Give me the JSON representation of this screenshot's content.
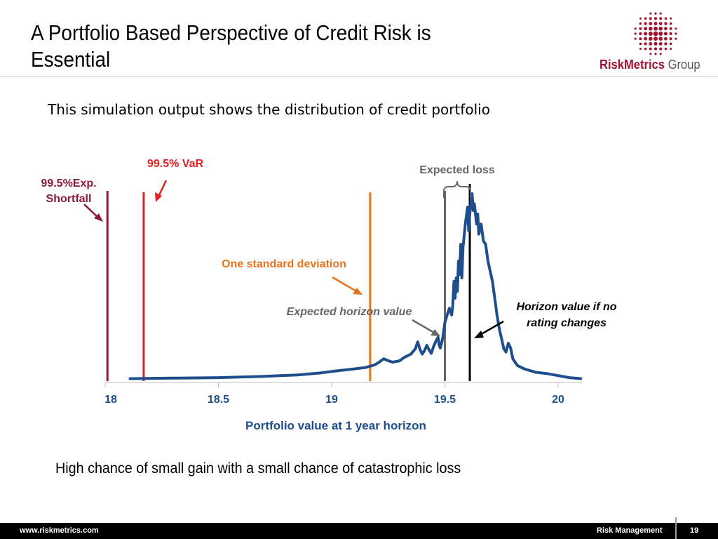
{
  "slide": {
    "title": "A Portfolio Based Perspective of Credit Risk is Essential",
    "subtitle": "This simulation output shows the distribution of credit portfolio",
    "conclusion": "High chance of small gain with a small chance of catastrophic loss"
  },
  "logo": {
    "brand": "RiskMetrics",
    "suffix": "Group",
    "mark_color": "#a0112d"
  },
  "footer": {
    "url": "www.riskmetrics.com",
    "section": "Risk Management",
    "page": "19"
  },
  "chart_data": {
    "type": "line",
    "xlabel": "Portfolio value at 1 year horizon",
    "xlim": [
      18,
      20.1
    ],
    "xticks": [
      "18",
      "18.5",
      "19",
      "19.5",
      "20"
    ],
    "grid": false,
    "series": [
      {
        "color": "#1f4e8c",
        "points": [
          [
            18.11,
            0.005
          ],
          [
            18.3,
            0.012
          ],
          [
            18.5,
            0.02
          ],
          [
            18.7,
            0.04
          ],
          [
            18.85,
            0.06
          ],
          [
            18.95,
            0.09
          ],
          [
            19.02,
            0.12
          ],
          [
            19.1,
            0.15
          ],
          [
            19.15,
            0.17
          ],
          [
            19.19,
            0.21
          ],
          [
            19.21,
            0.25
          ],
          [
            19.23,
            0.3
          ],
          [
            19.25,
            0.27
          ],
          [
            19.27,
            0.25
          ],
          [
            19.3,
            0.27
          ],
          [
            19.32,
            0.32
          ],
          [
            19.35,
            0.37
          ],
          [
            19.37,
            0.45
          ],
          [
            19.38,
            0.55
          ],
          [
            19.39,
            0.44
          ],
          [
            19.4,
            0.37
          ],
          [
            19.41,
            0.42
          ],
          [
            19.42,
            0.5
          ],
          [
            19.43,
            0.43
          ],
          [
            19.44,
            0.38
          ],
          [
            19.45,
            0.48
          ],
          [
            19.46,
            0.56
          ],
          [
            19.47,
            0.62
          ],
          [
            19.475,
            0.5
          ],
          [
            19.48,
            0.46
          ],
          [
            19.49,
            0.6
          ],
          [
            19.5,
            0.84
          ],
          [
            19.51,
            0.95
          ],
          [
            19.52,
            1.05
          ],
          [
            19.53,
            0.95
          ],
          [
            19.535,
            1.1
          ],
          [
            19.54,
            1.45
          ],
          [
            19.545,
            1.2
          ],
          [
            19.55,
            1.5
          ],
          [
            19.555,
            1.3
          ],
          [
            19.56,
            1.75
          ],
          [
            19.565,
            1.55
          ],
          [
            19.57,
            2.0
          ],
          [
            19.575,
            1.5
          ],
          [
            19.58,
            1.95
          ],
          [
            19.59,
            2.3
          ],
          [
            19.6,
            2.55
          ],
          [
            19.605,
            2.2
          ],
          [
            19.61,
            2.45
          ],
          [
            19.62,
            2.75
          ],
          [
            19.625,
            2.5
          ],
          [
            19.63,
            2.6
          ],
          [
            19.64,
            2.3
          ],
          [
            19.645,
            2.45
          ],
          [
            19.65,
            2.15
          ],
          [
            19.66,
            2.3
          ],
          [
            19.67,
            2.05
          ],
          [
            19.68,
            2.0
          ],
          [
            19.69,
            1.75
          ],
          [
            19.7,
            1.6
          ],
          [
            19.71,
            1.45
          ],
          [
            19.72,
            1.2
          ],
          [
            19.73,
            0.95
          ],
          [
            19.74,
            0.75
          ],
          [
            19.75,
            0.6
          ],
          [
            19.76,
            0.45
          ],
          [
            19.77,
            0.4
          ],
          [
            19.78,
            0.53
          ],
          [
            19.79,
            0.46
          ],
          [
            19.8,
            0.3
          ],
          [
            19.82,
            0.2
          ],
          [
            19.85,
            0.15
          ],
          [
            19.9,
            0.1
          ],
          [
            19.95,
            0.08
          ],
          [
            20.0,
            0.05
          ],
          [
            20.05,
            0.02
          ],
          [
            20.1,
            0.005
          ]
        ]
      }
    ],
    "markers": [
      {
        "label": "99.5%Exp. Shortfall",
        "x": 18.01,
        "color": "#8b1a3a"
      },
      {
        "label": "99.5% VaR",
        "x": 18.17,
        "color": "#e02020"
      },
      {
        "label": "One standard deviation",
        "x": 19.17,
        "color": "#e8731a"
      },
      {
        "label": "Expected horizon value",
        "x": 19.5,
        "color": "#666666"
      },
      {
        "label": "Horizon value if no rating changes",
        "x": 19.61,
        "color": "#000000"
      }
    ],
    "annotations": {
      "expected_loss": "Expected loss"
    }
  }
}
